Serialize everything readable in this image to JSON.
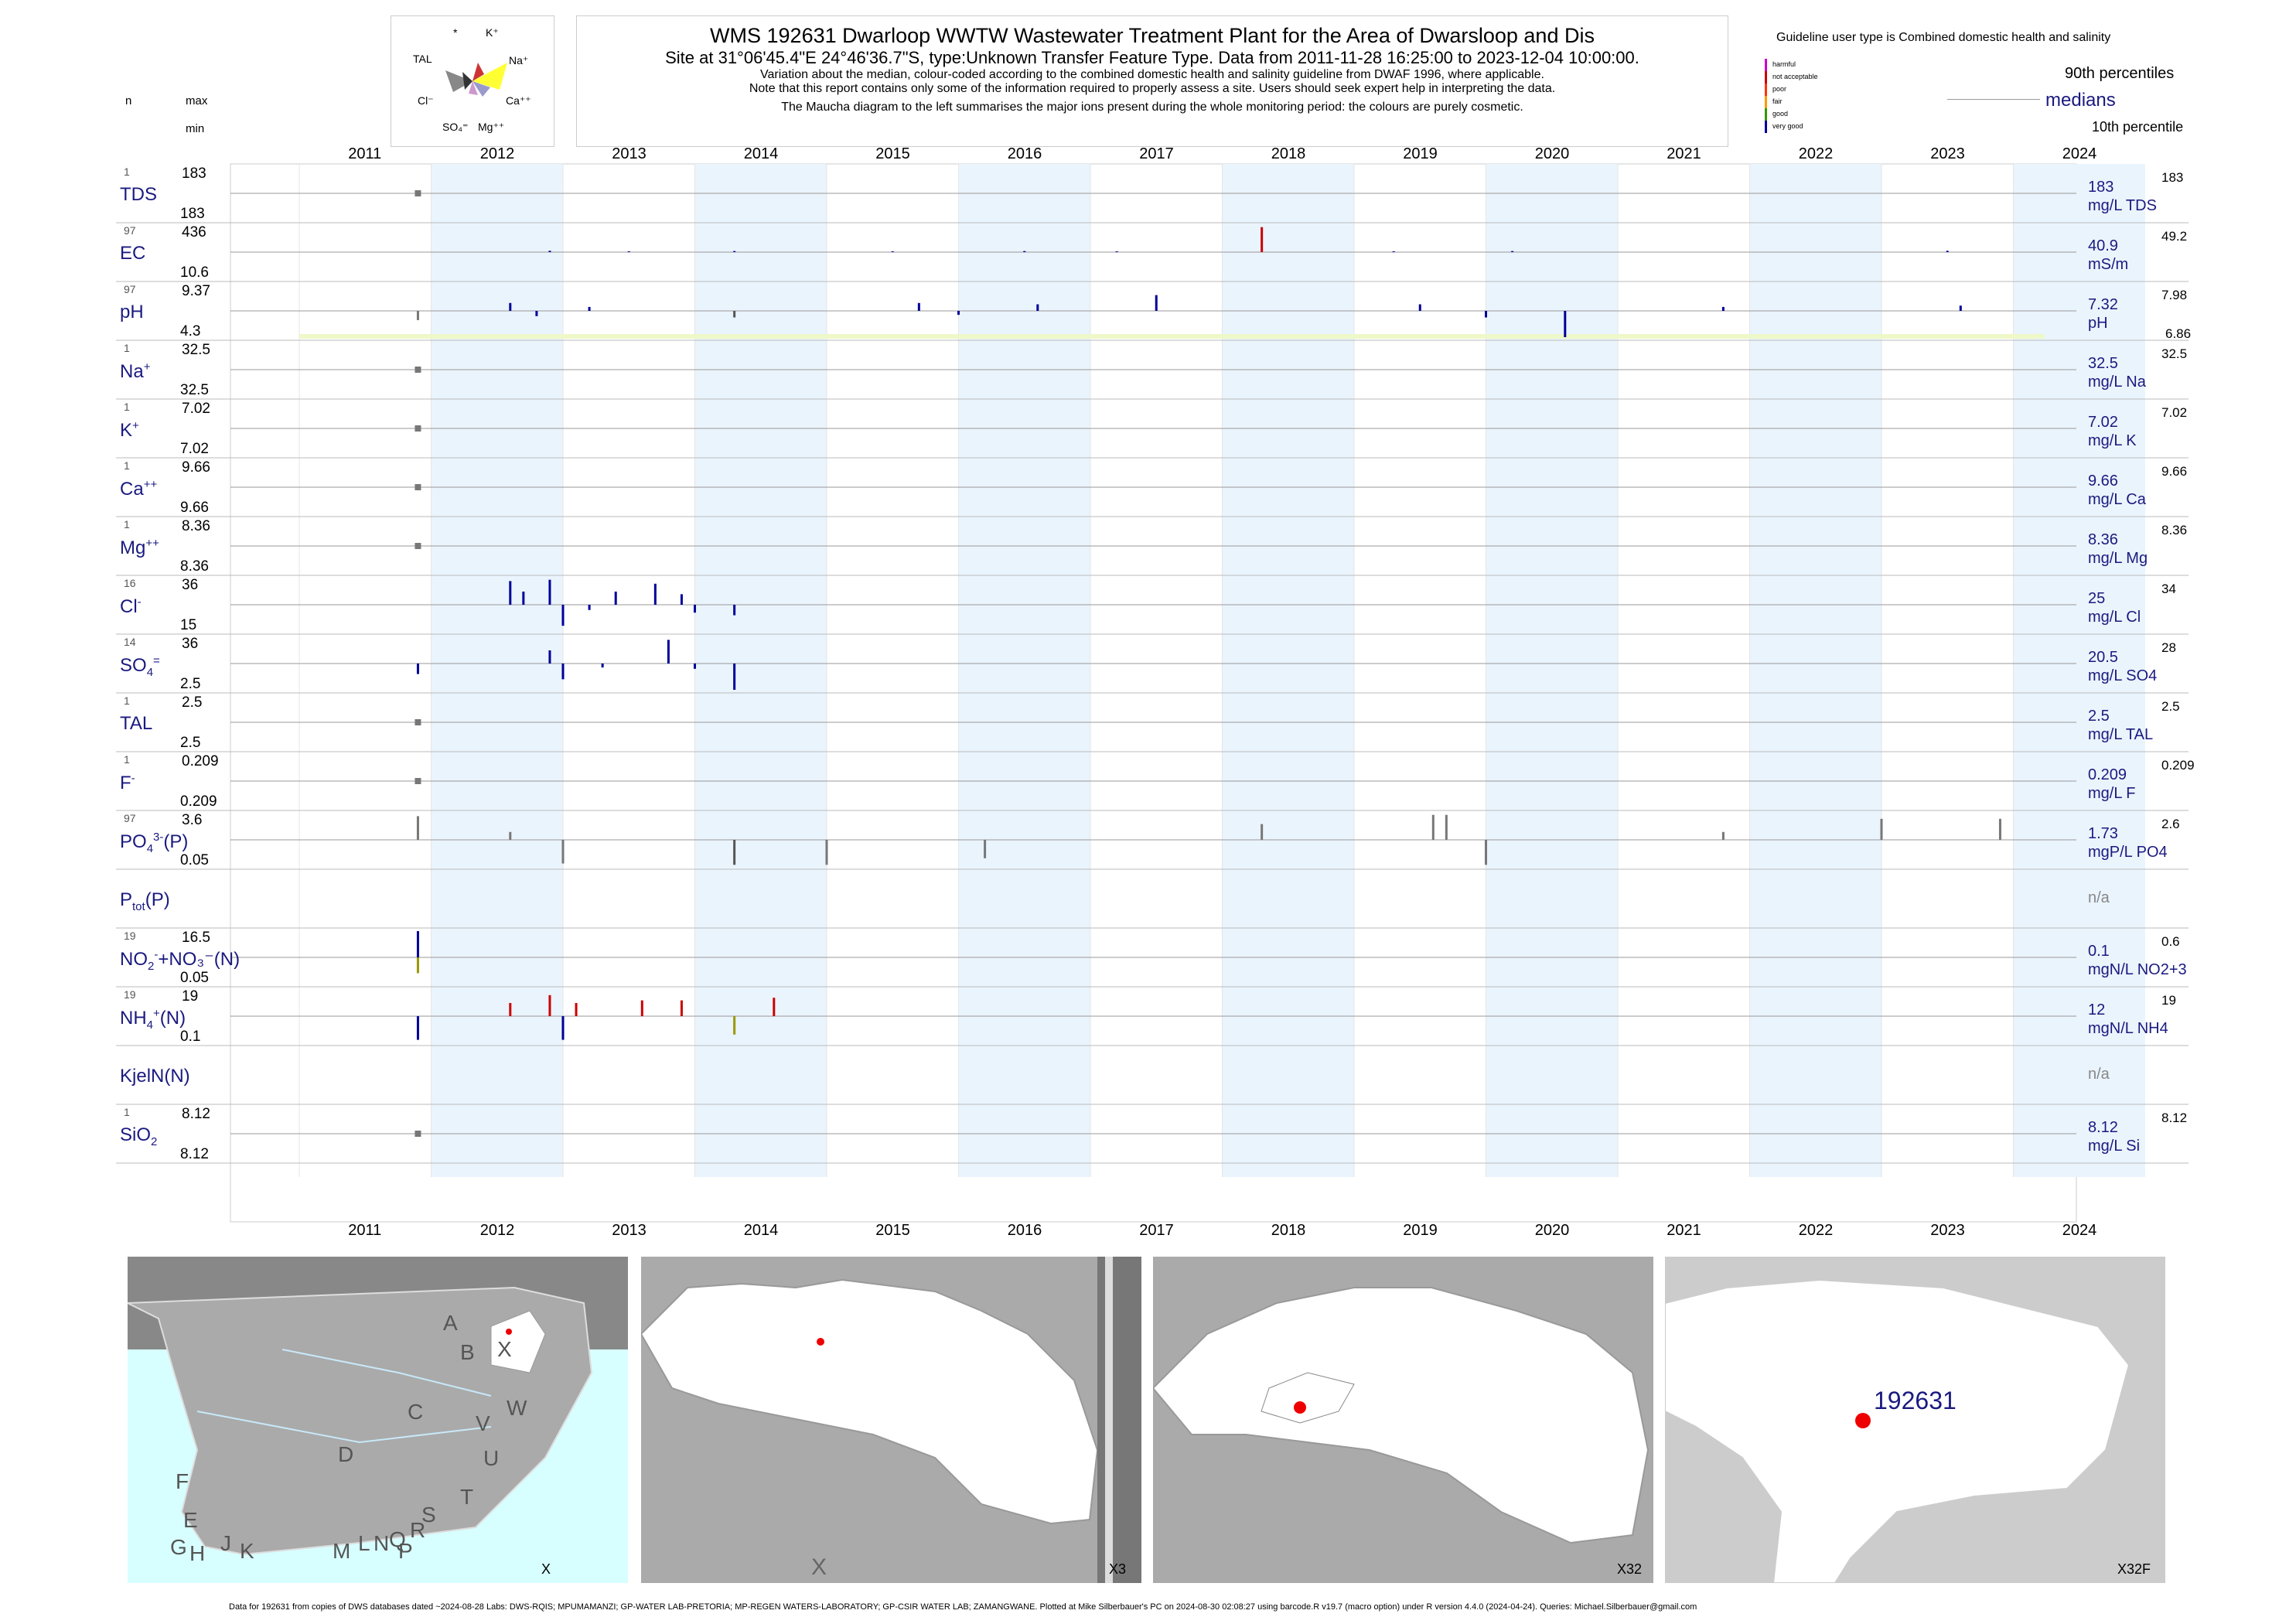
{
  "header": {
    "title": "WMS 192631  Dwarloop WWTW Wastewater Treatment Plant for the Area of Dwarsloop and Dis",
    "site": "Site at 31°06'45.4\"E 24°46'36.7\"S, type:Unknown Transfer Feature Type.  Data from 2011-11-28 16:25:00 to 2023-12-04 10:00:00.",
    "note1": "Variation about the median,  colour-coded according to the combined domestic health and salinity guideline from DWAF 1996, where applicable.",
    "note2": "Note that this report contains only some of the information required to properly assess a site. Users should seek expert help in interpreting the data.",
    "note3": "The Maucha diagram to the left summarises the major ions present during the whole monitoring period: the colours are purely cosmetic."
  },
  "maucha": {
    "labels": {
      "star": "*",
      "k": "K⁺",
      "tal": "TAL",
      "na": "Na⁺",
      "cl": "Cl⁻",
      "ca": "Ca⁺⁺",
      "so4": "SO₄⁼",
      "mg": "Mg⁺⁺"
    }
  },
  "guideline": {
    "title": "Guideline user type is Combined domestic health and salinity",
    "classes": [
      {
        "label": "harmful",
        "color": "#cc00cc"
      },
      {
        "label": "not acceptable",
        "color": "#cc0000"
      },
      {
        "label": "poor",
        "color": "#ff3300"
      },
      {
        "label": "fair",
        "color": "#ff9900"
      },
      {
        "label": "good",
        "color": "#339900"
      },
      {
        "label": "very good",
        "color": "#000099"
      }
    ],
    "p90": "90th percentiles",
    "medians": "medians",
    "p10": "10th percentile"
  },
  "col_heads": {
    "n": "n",
    "max": "max",
    "min": "min"
  },
  "chart_data": {
    "type": "bar",
    "x_axis": {
      "type": "date",
      "range": [
        "2011-01-01",
        "2024-12-31"
      ],
      "ticks": [
        "2011",
        "2012",
        "2013",
        "2014",
        "2015",
        "2016",
        "2017",
        "2018",
        "2019",
        "2020",
        "2021",
        "2022",
        "2023",
        "2024"
      ]
    },
    "shaded_years": [
      "2012",
      "2014",
      "2016",
      "2018",
      "2020",
      "2022",
      "2024"
    ],
    "shade_color": "#eaf4fc",
    "panels": [
      {
        "key": "TDS",
        "label": "TDS",
        "sup": "",
        "sub": "",
        "n": "1",
        "max": "183",
        "min": "183",
        "median": "183",
        "unit": "mg/L TDS",
        "p90": "183",
        "p10": "",
        "bars": [
          [
            2011.9,
            0,
            "#777777"
          ]
        ]
      },
      {
        "key": "EC",
        "label": "EC",
        "sup": "",
        "sub": "",
        "n": "97",
        "max": "436",
        "min": "10.6",
        "median": "40.9",
        "unit": "mS/m",
        "p90": "49.2",
        "p10": "",
        "bars": [
          [
            2018.3,
            0.95,
            "#cc0000"
          ],
          [
            2012.9,
            0.05,
            "#000099"
          ],
          [
            2013.5,
            0.03,
            "#000099"
          ],
          [
            2014.3,
            0.04,
            "#000099"
          ],
          [
            2015.5,
            0.03,
            "#000099"
          ],
          [
            2016.5,
            0.04,
            "#000099"
          ],
          [
            2017.2,
            0.03,
            "#000099"
          ],
          [
            2019.3,
            0.03,
            "#000099"
          ],
          [
            2020.2,
            0.04,
            "#000099"
          ],
          [
            2023.5,
            0.05,
            "#000099"
          ]
        ]
      },
      {
        "key": "pH",
        "label": "pH",
        "sup": "",
        "sub": "",
        "n": "97",
        "max": "9.37",
        "min": "4.3",
        "median": "7.32",
        "unit": "pH",
        "p90": "7.98",
        "p10": "6.86",
        "bars": [
          [
            2011.9,
            -0.35,
            "#777777"
          ],
          [
            2012.6,
            0.3,
            "#000099"
          ],
          [
            2012.8,
            -0.2,
            "#000099"
          ],
          [
            2013.2,
            0.15,
            "#000099"
          ],
          [
            2014.3,
            -0.25,
            "#555555"
          ],
          [
            2015.7,
            0.3,
            "#000099"
          ],
          [
            2016.0,
            -0.15,
            "#000099"
          ],
          [
            2016.6,
            0.25,
            "#000099"
          ],
          [
            2017.5,
            0.6,
            "#000099"
          ],
          [
            2019.5,
            0.25,
            "#000099"
          ],
          [
            2020.0,
            -0.25,
            "#000099"
          ],
          [
            2020.6,
            -1.0,
            "#000099"
          ],
          [
            2021.8,
            0.15,
            "#000099"
          ],
          [
            2023.6,
            0.2,
            "#000099"
          ]
        ],
        "band": true
      },
      {
        "key": "Na",
        "label": "Na",
        "sup": "+",
        "sub": "",
        "n": "1",
        "max": "32.5",
        "min": "32.5",
        "median": "32.5",
        "unit": "mg/L Na",
        "p90": "32.5",
        "p10": "",
        "bars": [
          [
            2011.9,
            0,
            "#777777"
          ]
        ]
      },
      {
        "key": "K",
        "label": "K",
        "sup": "+",
        "sub": "",
        "n": "1",
        "max": "7.02",
        "min": "7.02",
        "median": "7.02",
        "unit": "mg/L K",
        "p90": "7.02",
        "p10": "",
        "bars": [
          [
            2011.9,
            0,
            "#777777"
          ]
        ]
      },
      {
        "key": "Ca",
        "label": "Ca",
        "sup": "++",
        "sub": "",
        "n": "1",
        "max": "9.66",
        "min": "9.66",
        "median": "9.66",
        "unit": "mg/L Ca",
        "p90": "9.66",
        "p10": "",
        "bars": [
          [
            2011.9,
            0,
            "#777777"
          ]
        ]
      },
      {
        "key": "Mg",
        "label": "Mg",
        "sup": "++",
        "sub": "",
        "n": "1",
        "max": "8.36",
        "min": "8.36",
        "median": "8.36",
        "unit": "mg/L Mg",
        "p90": "8.36",
        "p10": "",
        "bars": [
          [
            2011.9,
            0,
            "#777777"
          ]
        ]
      },
      {
        "key": "Cl",
        "label": "Cl",
        "sup": "-",
        "sub": "",
        "n": "16",
        "max": "36",
        "min": "15",
        "median": "25",
        "unit": "mg/L Cl",
        "p90": "34",
        "p10": "",
        "bars": [
          [
            2012.6,
            0.9,
            "#000099"
          ],
          [
            2012.7,
            0.5,
            "#000099"
          ],
          [
            2012.9,
            0.95,
            "#000099"
          ],
          [
            2013.0,
            -0.8,
            "#000099"
          ],
          [
            2013.2,
            -0.2,
            "#000099"
          ],
          [
            2013.4,
            0.5,
            "#000099"
          ],
          [
            2013.7,
            0.8,
            "#000099"
          ],
          [
            2013.9,
            0.4,
            "#000099"
          ],
          [
            2014.0,
            -0.3,
            "#000099"
          ],
          [
            2014.3,
            -0.4,
            "#000099"
          ]
        ]
      },
      {
        "key": "SO4",
        "label": "SO",
        "sup": "=",
        "sub": "4",
        "n": "14",
        "max": "36",
        "min": "2.5",
        "median": "20.5",
        "unit": "mg/L SO4",
        "p90": "28",
        "p10": "",
        "bars": [
          [
            2011.9,
            -0.4,
            "#000099"
          ],
          [
            2012.9,
            0.5,
            "#000099"
          ],
          [
            2013.0,
            -0.6,
            "#000099"
          ],
          [
            2013.3,
            -0.15,
            "#000099"
          ],
          [
            2013.8,
            0.9,
            "#000099"
          ],
          [
            2014.0,
            -0.2,
            "#000099"
          ],
          [
            2014.3,
            -1.0,
            "#000099"
          ]
        ]
      },
      {
        "key": "TAL",
        "label": "TAL",
        "sup": "",
        "sub": "",
        "n": "1",
        "max": "2.5",
        "min": "2.5",
        "median": "2.5",
        "unit": "mg/L TAL",
        "p90": "2.5",
        "p10": "",
        "bars": [
          [
            2011.9,
            0,
            "#777777"
          ]
        ]
      },
      {
        "key": "F",
        "label": "F",
        "sup": "-",
        "sub": "",
        "n": "1",
        "max": "0.209",
        "min": "0.209",
        "median": "0.209",
        "unit": "mg/L F",
        "p90": "0.209",
        "p10": "",
        "bars": [
          [
            2011.9,
            0,
            "#777777"
          ]
        ]
      },
      {
        "key": "PO4",
        "label": "PO",
        "sup": "3-",
        "sub": "4",
        "tail": "(P)",
        "n": "97",
        "max": "3.6",
        "min": "0.05",
        "median": "1.73",
        "unit": "mgP/L PO4",
        "p90": "2.6",
        "p10": "",
        "bars": [
          [
            2011.9,
            0.9,
            "#777777"
          ],
          [
            2012.6,
            0.3,
            "#777777"
          ],
          [
            2013.0,
            -0.9,
            "#777777"
          ],
          [
            2014.3,
            -0.95,
            "#555555"
          ],
          [
            2015.0,
            -0.95,
            "#777777"
          ],
          [
            2016.2,
            -0.7,
            "#777777"
          ],
          [
            2018.3,
            0.6,
            "#777777"
          ],
          [
            2019.6,
            0.95,
            "#777777"
          ],
          [
            2019.7,
            0.95,
            "#777777"
          ],
          [
            2020.0,
            -0.95,
            "#777777"
          ],
          [
            2021.8,
            0.3,
            "#777777"
          ],
          [
            2023.0,
            0.8,
            "#777777"
          ],
          [
            2023.9,
            0.8,
            "#777777"
          ]
        ]
      },
      {
        "key": "Ptot",
        "label": "P",
        "sup": "",
        "sub": "tot",
        "tail": "(P)",
        "n": "",
        "max": "",
        "min": "",
        "median": "n/a",
        "unit": "",
        "p90": "",
        "p10": "",
        "bars": []
      },
      {
        "key": "NOx",
        "label": "NO",
        "sup": "-",
        "sub": "2",
        "tail": "+NO₃⁻(N)",
        "n": "19",
        "max": "16.5",
        "min": "0.05",
        "median": "0.1",
        "unit": "mgN/L NO2+3",
        "p90": "0.6",
        "p10": "",
        "bars": [
          [
            2011.9,
            1.0,
            "#000099"
          ],
          [
            2011.9,
            -0.6,
            "#999900"
          ]
        ]
      },
      {
        "key": "NH4",
        "label": "NH",
        "sup": "+",
        "sub": "4",
        "tail": "(N)",
        "n": "19",
        "max": "19",
        "min": "0.1",
        "median": "12",
        "unit": "mgN/L NH4",
        "p90": "19",
        "p10": "",
        "bars": [
          [
            2011.9,
            -0.9,
            "#000099"
          ],
          [
            2012.6,
            0.5,
            "#cc0000"
          ],
          [
            2012.9,
            0.8,
            "#cc0000"
          ],
          [
            2013.0,
            -0.9,
            "#000099"
          ],
          [
            2013.1,
            0.5,
            "#cc0000"
          ],
          [
            2013.6,
            0.6,
            "#cc0000"
          ],
          [
            2013.9,
            0.6,
            "#cc0000"
          ],
          [
            2014.3,
            -0.7,
            "#999900"
          ],
          [
            2014.6,
            0.7,
            "#cc0000"
          ]
        ]
      },
      {
        "key": "KjelN",
        "label": "KjelN(N)",
        "sup": "",
        "sub": "",
        "n": "",
        "max": "",
        "min": "",
        "median": "n/a",
        "unit": "",
        "p90": "",
        "p10": "",
        "bars": []
      },
      {
        "key": "SiO2",
        "label": "SiO",
        "sup": "",
        "sub": "2",
        "n": "1",
        "max": "8.12",
        "min": "8.12",
        "median": "8.12",
        "unit": "mg/L Si",
        "p90": "8.12",
        "p10": "",
        "bars": [
          [
            2011.9,
            0,
            "#777777"
          ]
        ]
      }
    ]
  },
  "maps": [
    {
      "caption": "X",
      "letters": [
        "A",
        "B",
        "X",
        "C",
        "W",
        "D",
        "V",
        "U",
        "F",
        "T",
        "E",
        "S",
        "L",
        "N",
        "Q",
        "R",
        "G",
        "H",
        "J",
        "K",
        "M",
        "P"
      ]
    },
    {
      "caption": "X3",
      "letters": [
        "X"
      ]
    },
    {
      "caption": "X32",
      "letters": []
    },
    {
      "caption": "X32F",
      "letters": [],
      "site_label": "192631"
    }
  ],
  "footer": "Data for 192631 from copies of DWS databases dated ~2024-08-28 Labs: DWS-RQIS; MPUMAMANZI; GP-WATER LAB-PRETORIA; MP-REGEN WATERS-LABORATORY; GP-CSIR WATER LAB; ZAMANGWANE. Plotted at Mike Silberbauer's PC on 2024-08-30 02:08:27 using barcode.R v19.7 (macro option) under R version 4.4.0 (2024-04-24). Queries: Michael.Silberbauer@gmail.com"
}
